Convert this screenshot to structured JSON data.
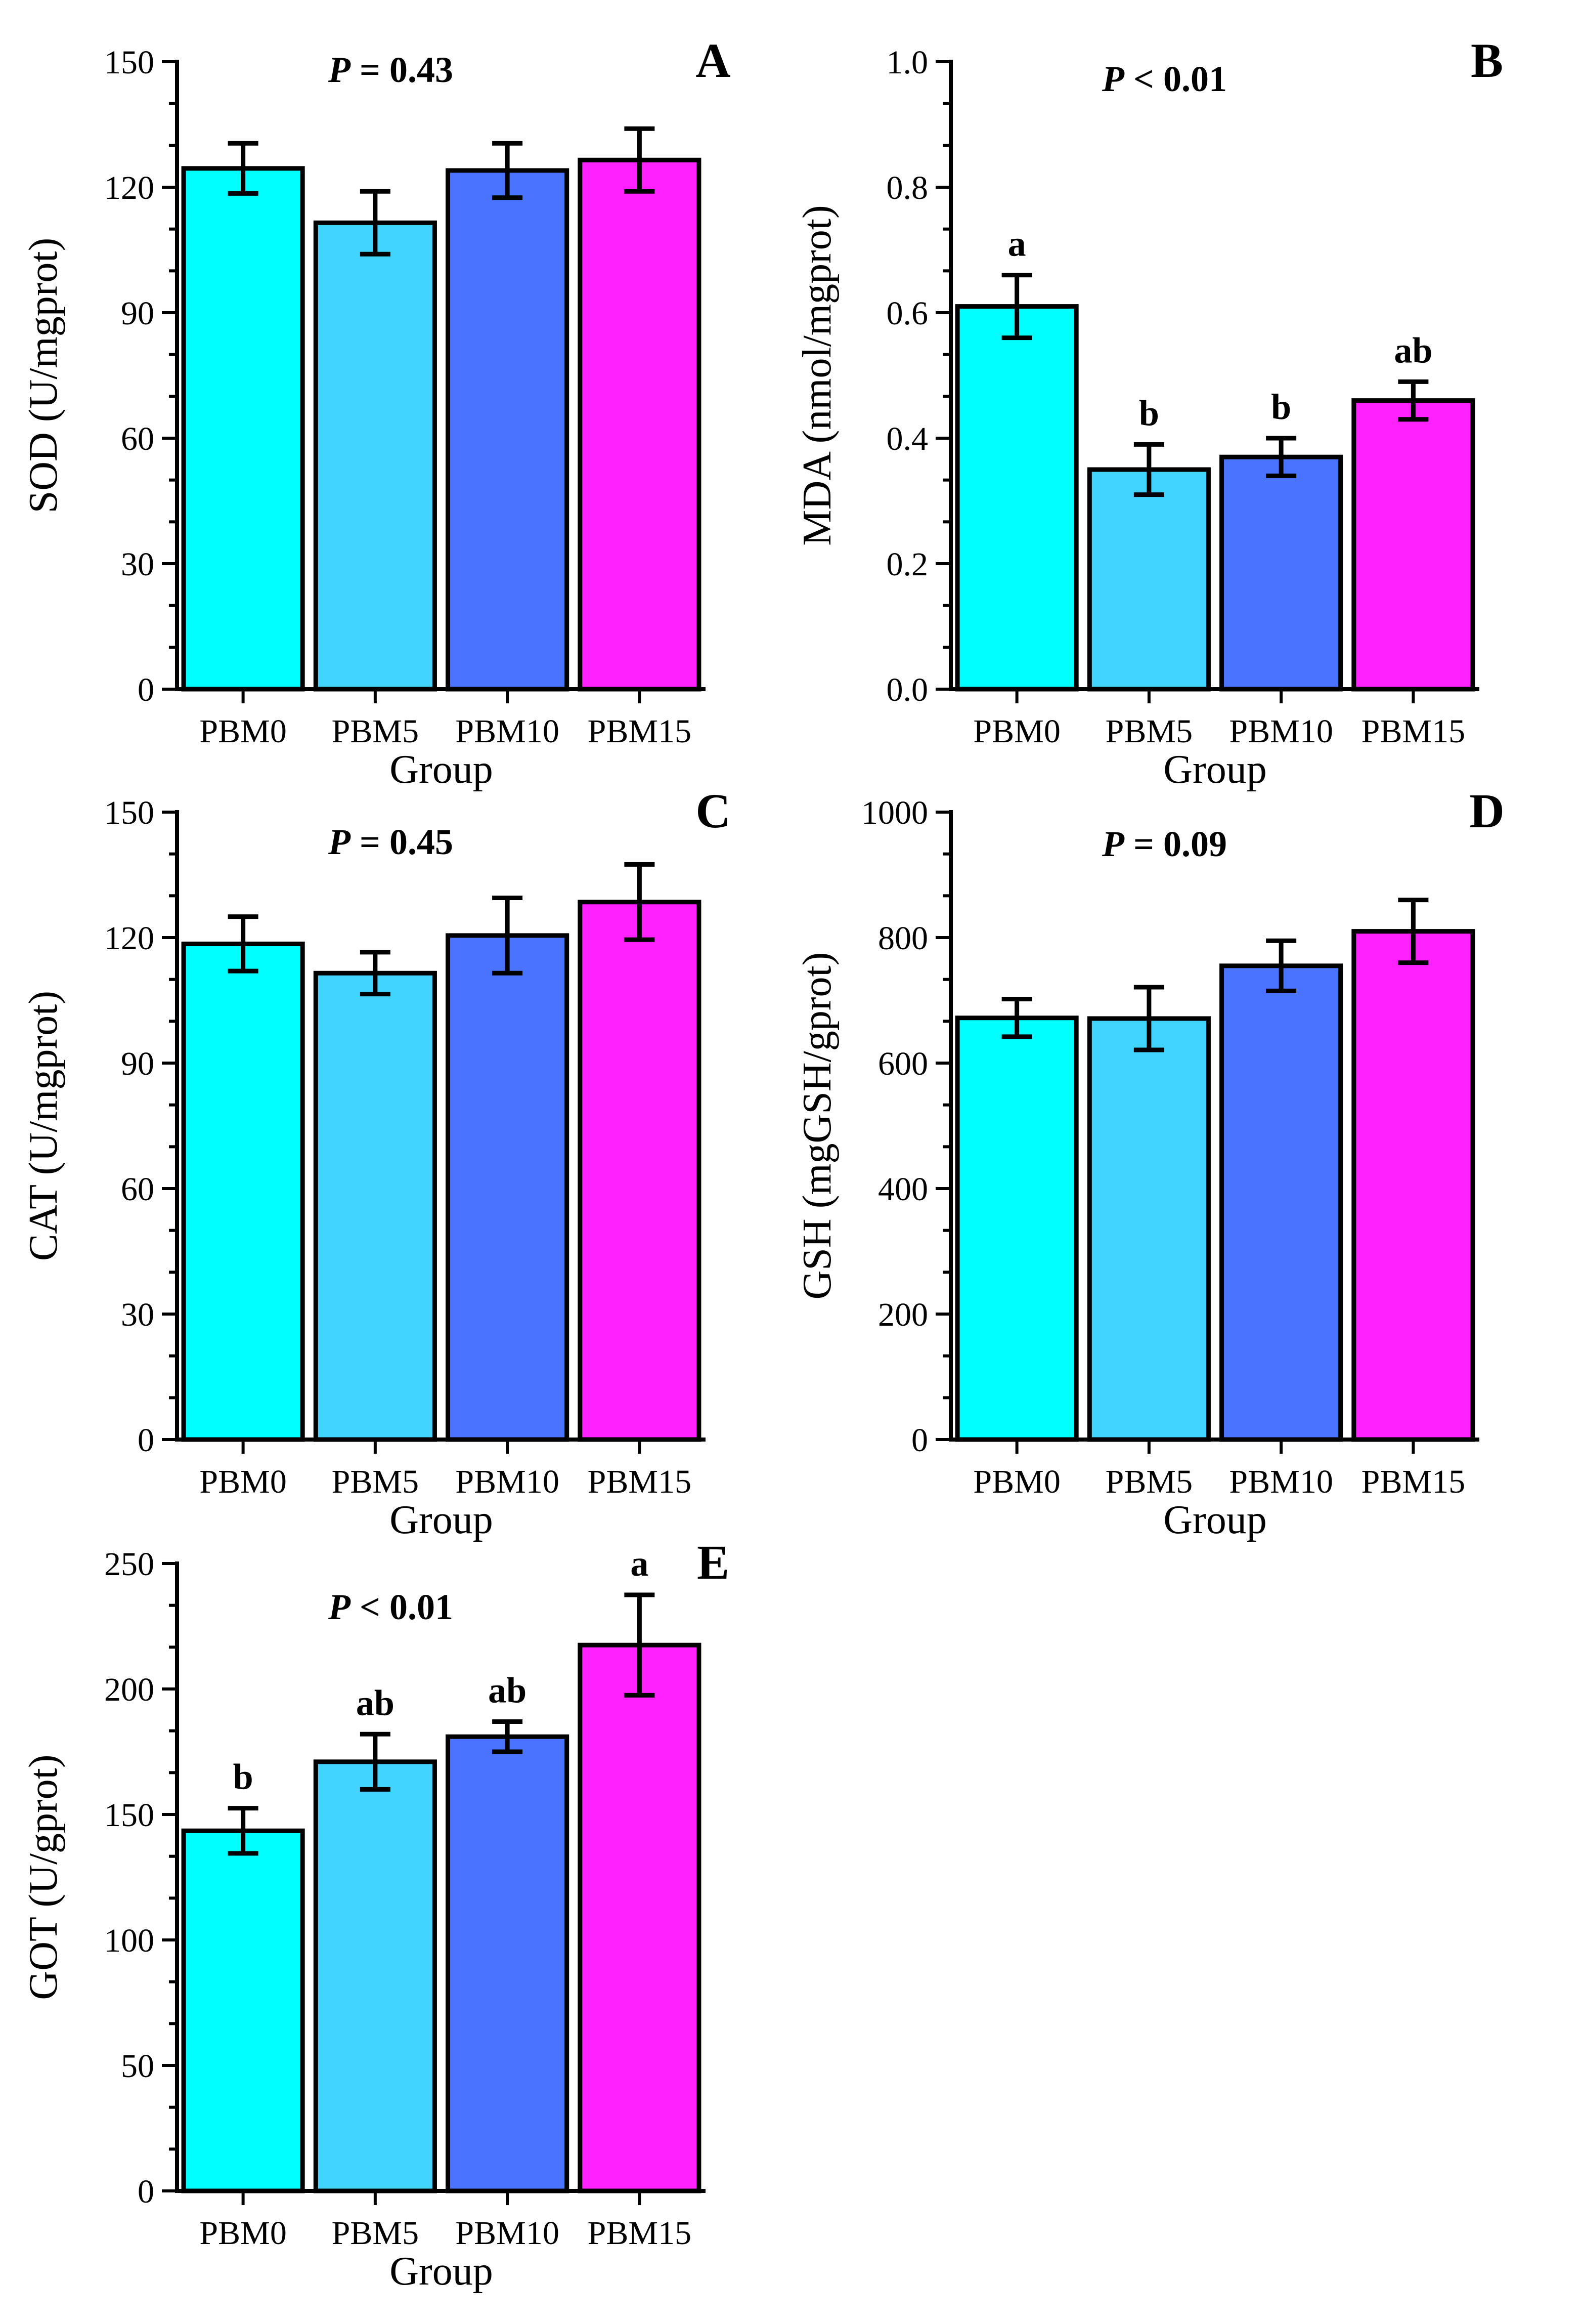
{
  "colors": {
    "PBM0": "#00ffff",
    "PBM5": "#40d4ff",
    "PBM10": "#4a74ff",
    "PBM15": "#ff22ff",
    "axis": "#000000"
  },
  "chart_data": [
    {
      "panel": "A",
      "type": "bar",
      "categories": [
        "PBM0",
        "PBM5",
        "PBM10",
        "PBM15"
      ],
      "values": [
        124.5,
        111.5,
        124,
        126.5
      ],
      "errors": [
        6,
        7.5,
        6.5,
        7.5
      ],
      "significance": [
        "",
        "",
        "",
        ""
      ],
      "ylabel": "SOD (U/mgprot)",
      "xlabel": "Group",
      "ylim": [
        0,
        150
      ],
      "yticks": [
        0,
        30,
        60,
        90,
        120,
        150
      ],
      "ytick_labels": [
        "0",
        "30",
        "60",
        "90",
        "120",
        "150"
      ],
      "pval_symbol": "P",
      "pval_rest": " = 0.43"
    },
    {
      "panel": "B",
      "type": "bar",
      "categories": [
        "PBM0",
        "PBM5",
        "PBM10",
        "PBM15"
      ],
      "values": [
        0.61,
        0.35,
        0.37,
        0.46
      ],
      "errors": [
        0.05,
        0.04,
        0.03,
        0.03
      ],
      "significance": [
        "a",
        "b",
        "b",
        "ab"
      ],
      "ylabel": "MDA (nmol/mgprot)",
      "xlabel": "Group",
      "ylim": [
        0,
        1.0
      ],
      "yticks": [
        0,
        0.2,
        0.4,
        0.6,
        0.8,
        1.0
      ],
      "ytick_labels": [
        "0.0",
        "0.2",
        "0.4",
        "0.6",
        "0.8",
        "1.0"
      ],
      "pval_symbol": "P",
      "pval_rest": " < 0.01"
    },
    {
      "panel": "C",
      "type": "bar",
      "categories": [
        "PBM0",
        "PBM5",
        "PBM10",
        "PBM15"
      ],
      "values": [
        118.5,
        111.5,
        120.5,
        128.5
      ],
      "errors": [
        6.5,
        5,
        9,
        9
      ],
      "significance": [
        "",
        "",
        "",
        ""
      ],
      "ylabel": "CAT (U/mgprot)",
      "xlabel": "Group",
      "ylim": [
        0,
        150
      ],
      "yticks": [
        0,
        30,
        60,
        90,
        120,
        150
      ],
      "ytick_labels": [
        "0",
        "30",
        "60",
        "90",
        "120",
        "150"
      ],
      "pval_symbol": "P",
      "pval_rest": " = 0.45"
    },
    {
      "panel": "D",
      "type": "bar",
      "categories": [
        "PBM0",
        "PBM5",
        "PBM10",
        "PBM15"
      ],
      "values": [
        672,
        671,
        755,
        810
      ],
      "errors": [
        30,
        50,
        40,
        50
      ],
      "significance": [
        "",
        "",
        "",
        ""
      ],
      "ylabel": "GSH (mgGSH/gprot)",
      "xlabel": "Group",
      "ylim": [
        0,
        1000
      ],
      "yticks": [
        0,
        200,
        400,
        600,
        800,
        1000
      ],
      "ytick_labels": [
        "0",
        "200",
        "400",
        "600",
        "800",
        "1000"
      ],
      "pval_symbol": "P",
      "pval_rest": " = 0.09"
    },
    {
      "panel": "E",
      "type": "bar",
      "categories": [
        "PBM0",
        "PBM5",
        "PBM10",
        "PBM15"
      ],
      "values": [
        143.5,
        171,
        181,
        217.5
      ],
      "errors": [
        9,
        11,
        6,
        20
      ],
      "significance": [
        "b",
        "ab",
        "ab",
        "a"
      ],
      "ylabel": "GOT (U/gprot)",
      "xlabel": "Group",
      "ylim": [
        0,
        250
      ],
      "yticks": [
        0,
        50,
        100,
        150,
        200,
        250
      ],
      "ytick_labels": [
        "0",
        "50",
        "100",
        "150",
        "200",
        "250"
      ],
      "pval_symbol": "P",
      "pval_rest": " < 0.01"
    }
  ]
}
